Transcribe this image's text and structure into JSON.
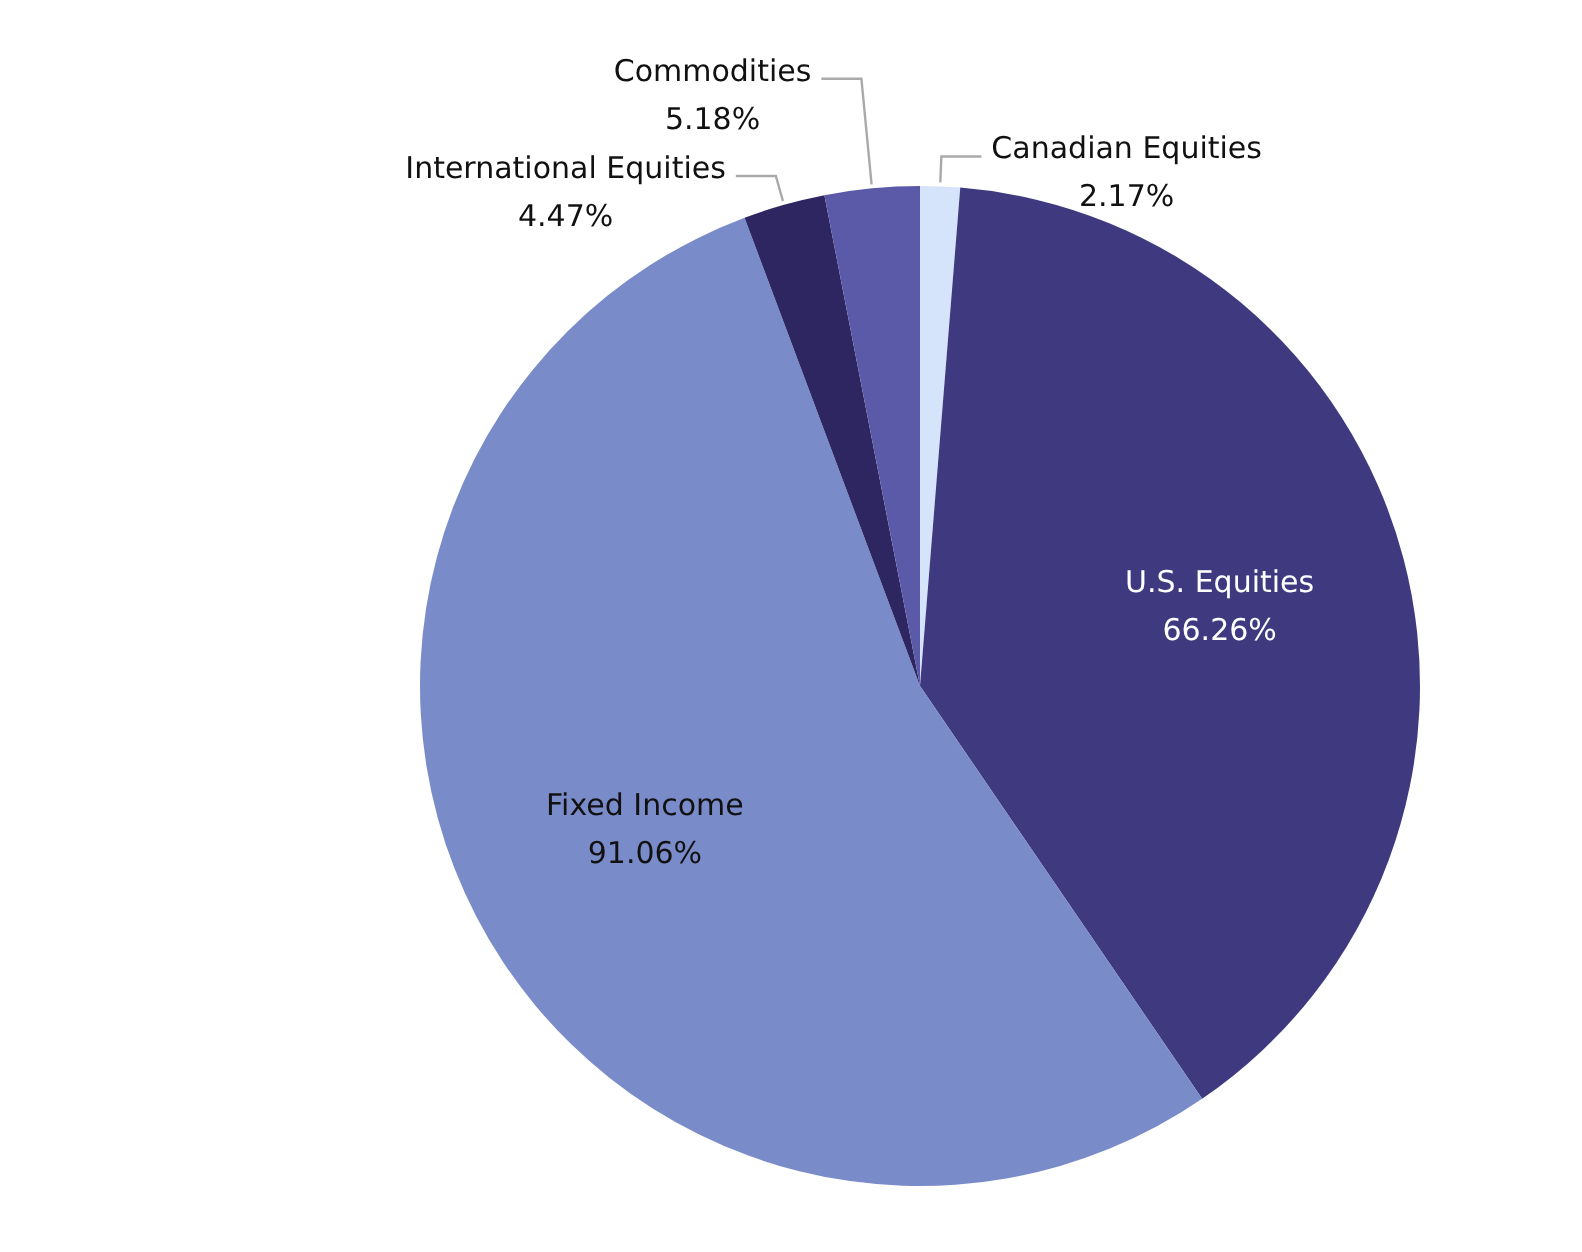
{
  "chart_data": {
    "type": "pie",
    "categories": [
      "Canadian Equities",
      "U.S. Equities",
      "Fixed Income",
      "International Equities",
      "Commodities"
    ],
    "values": [
      2.17,
      66.26,
      91.06,
      4.47,
      5.18
    ],
    "value_labels": [
      "2.17%",
      "66.26%",
      "91.06%",
      "4.47%",
      "5.18%"
    ],
    "colors": [
      "#d6e4fb",
      "#3f3a80",
      "#7a8bc9",
      "#2e2660",
      "#5b5aa8"
    ],
    "legend": false
  }
}
